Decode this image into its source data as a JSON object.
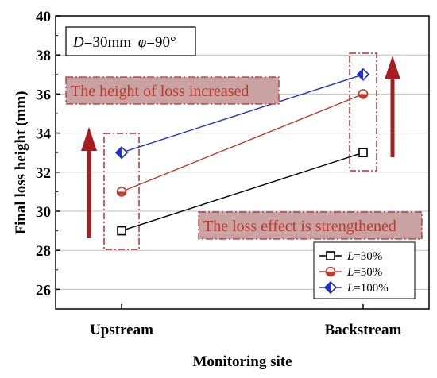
{
  "chart_data": {
    "type": "line",
    "categories": [
      "Upstream",
      "Backstream"
    ],
    "xlabel": "Monitoring site",
    "ylabel": "Final loss height (mm)",
    "ylim": [
      25,
      40
    ],
    "yticks": [
      26,
      28,
      30,
      32,
      34,
      36,
      38,
      40
    ],
    "grid": true,
    "legend_position": "bottom-right",
    "series": [
      {
        "name": "L=30%",
        "name_var": "L",
        "name_rest": "=30%",
        "values": [
          29,
          33
        ],
        "color": "#000000",
        "marker": "square"
      },
      {
        "name": "L=50%",
        "name_var": "L",
        "name_rest": "=50%",
        "values": [
          31,
          36
        ],
        "color": "#c0392b",
        "marker": "circle"
      },
      {
        "name": "L=100%",
        "name_var": "L",
        "name_rest": "=100%",
        "values": [
          33,
          37
        ],
        "color": "#1f2fd6",
        "marker": "diamond"
      }
    ],
    "param_box": {
      "d_var": "D",
      "d_rest": "=30mm ",
      "phi_var": "φ",
      "phi_rest": "=90°"
    },
    "annotations": [
      {
        "text": "The height of loss increased",
        "anchor": "upper-left"
      },
      {
        "text": "The loss effect is strengthened",
        "anchor": "lower-right"
      }
    ],
    "colors": {
      "arrow": "#a81d1d",
      "annot_fill": "#c9a3a3",
      "annot_border": "#b03030",
      "grid": "#bfbfbf"
    }
  }
}
